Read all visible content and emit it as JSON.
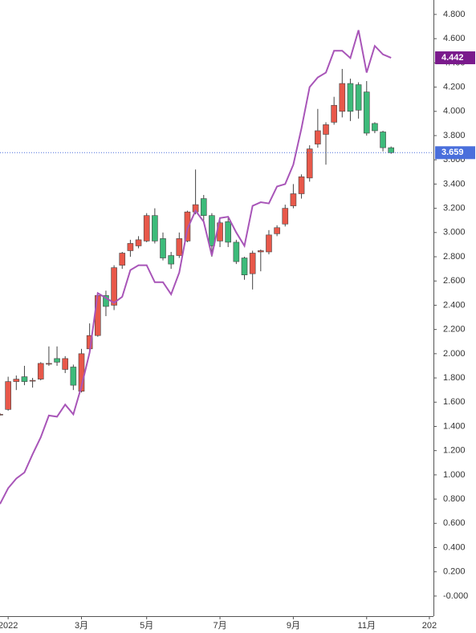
{
  "chart_data": {
    "type": "candlestick",
    "x": [
      0,
      1,
      2,
      3,
      4,
      5,
      6,
      7,
      8,
      9,
      10,
      11,
      12,
      13,
      14,
      15,
      16,
      17,
      18,
      19,
      20,
      21,
      22,
      23,
      24,
      25,
      26,
      27,
      28,
      29,
      30,
      31,
      32,
      33,
      34,
      35,
      36,
      37,
      38,
      39,
      40,
      41,
      42,
      43,
      44,
      45,
      46,
      47,
      48
    ],
    "open": [
      1.5,
      1.54,
      1.77,
      1.81,
      1.78,
      1.79,
      1.92,
      1.96,
      1.87,
      1.89,
      1.69,
      2.04,
      2.15,
      2.48,
      2.4,
      2.73,
      2.85,
      2.89,
      2.93,
      3.14,
      2.95,
      2.81,
      2.81,
      2.93,
      3.17,
      3.28,
      3.14,
      2.93,
      3.09,
      2.92,
      2.79,
      2.66,
      2.84,
      2.84,
      2.99,
      3.07,
      3.22,
      3.32,
      3.45,
      3.73,
      3.81,
      3.91,
      4.0,
      4.23,
      4.22,
      4.16,
      3.9,
      3.83,
      3.7
    ],
    "high": [
      1.51,
      1.81,
      1.82,
      1.9,
      1.8,
      1.93,
      2.06,
      2.06,
      1.98,
      1.91,
      2.04,
      2.25,
      2.5,
      2.52,
      2.73,
      2.84,
      2.94,
      2.97,
      3.16,
      3.2,
      3.0,
      2.84,
      3.0,
      3.18,
      3.52,
      3.31,
      3.16,
      3.1,
      3.12,
      2.94,
      2.8,
      2.85,
      2.86,
      3.02,
      3.06,
      3.23,
      3.4,
      3.48,
      3.72,
      4.02,
      3.91,
      4.12,
      4.35,
      4.27,
      4.24,
      4.25,
      3.91,
      3.84,
      3.71
    ],
    "low": [
      1.49,
      1.53,
      1.7,
      1.74,
      1.72,
      1.78,
      1.9,
      1.9,
      1.84,
      1.7,
      1.68,
      2.02,
      2.14,
      2.31,
      2.36,
      2.7,
      2.8,
      2.87,
      2.92,
      2.91,
      2.77,
      2.7,
      2.79,
      2.92,
      3.15,
      3.1,
      2.8,
      2.88,
      2.88,
      2.74,
      2.61,
      2.53,
      2.68,
      2.82,
      2.97,
      3.05,
      3.2,
      3.28,
      3.42,
      3.7,
      3.56,
      3.89,
      3.95,
      3.92,
      3.94,
      3.8,
      3.82,
      3.67,
      3.65
    ],
    "close": [
      1.5,
      1.77,
      1.79,
      1.77,
      1.78,
      1.92,
      1.92,
      1.93,
      1.96,
      1.74,
      2.0,
      2.15,
      2.48,
      2.39,
      2.71,
      2.83,
      2.91,
      2.94,
      3.14,
      2.93,
      2.79,
      2.74,
      2.95,
      3.17,
      3.23,
      3.14,
      2.89,
      3.08,
      2.92,
      2.76,
      2.65,
      2.83,
      2.85,
      2.98,
      3.04,
      3.2,
      3.32,
      3.46,
      3.69,
      3.84,
      3.89,
      4.05,
      4.23,
      4.0,
      4.01,
      3.82,
      3.84,
      3.7,
      3.659
    ],
    "up_color": "#e8584a",
    "down_color": "#3dbb7a",
    "line": {
      "color": "#a855b8",
      "label_color": "#7a1a8c",
      "values": [
        0.76,
        0.89,
        0.97,
        1.02,
        1.17,
        1.31,
        1.49,
        1.48,
        1.58,
        1.5,
        1.73,
        2.01,
        2.5,
        2.46,
        2.42,
        2.47,
        2.69,
        2.73,
        2.73,
        2.59,
        2.59,
        2.49,
        2.67,
        3.03,
        3.18,
        3.09,
        2.81,
        3.12,
        3.13,
        3.0,
        2.89,
        3.22,
        3.25,
        3.24,
        3.38,
        3.4,
        3.56,
        3.86,
        4.2,
        4.28,
        4.32,
        4.5,
        4.5,
        4.44,
        4.67,
        4.32,
        4.54,
        4.47,
        4.442
      ]
    },
    "last_price_color": "#4a6fdc",
    "xlim": [
      0,
      53.2
    ],
    "xticks": [
      {
        "value": 1,
        "label": "2022"
      },
      {
        "value": 10,
        "label": "3月"
      },
      {
        "value": 18,
        "label": "5月"
      },
      {
        "value": 27,
        "label": "7月"
      },
      {
        "value": 36,
        "label": "9月"
      },
      {
        "value": 45,
        "label": "11月"
      },
      {
        "value": 52.7,
        "label": "202"
      }
    ],
    "ylim": [
      -0.166,
      4.866
    ],
    "yticks": [
      {
        "value": 4.8,
        "label": "4.800"
      },
      {
        "value": 4.6,
        "label": "4.600"
      },
      {
        "value": 4.4,
        "label": "4.400"
      },
      {
        "value": 4.2,
        "label": "4.200"
      },
      {
        "value": 4.0,
        "label": "4.000"
      },
      {
        "value": 3.8,
        "label": "3.800"
      },
      {
        "value": 3.6,
        "label": "3.600"
      },
      {
        "value": 3.4,
        "label": "3.400"
      },
      {
        "value": 3.2,
        "label": "3.200"
      },
      {
        "value": 3.0,
        "label": "3.000"
      },
      {
        "value": 2.8,
        "label": "2.800"
      },
      {
        "value": 2.6,
        "label": "2.600"
      },
      {
        "value": 2.4,
        "label": "2.400"
      },
      {
        "value": 2.2,
        "label": "2.200"
      },
      {
        "value": 2.0,
        "label": "2.000"
      },
      {
        "value": 1.8,
        "label": "1.800"
      },
      {
        "value": 1.6,
        "label": "1.600"
      },
      {
        "value": 1.4,
        "label": "1.400"
      },
      {
        "value": 1.2,
        "label": "1.200"
      },
      {
        "value": 1.0,
        "label": "1.000"
      },
      {
        "value": 0.8,
        "label": "0.800"
      },
      {
        "value": 0.6,
        "label": "0.600"
      },
      {
        "value": 0.4,
        "label": "0.400"
      },
      {
        "value": 0.2,
        "label": "0.200"
      },
      {
        "value": 0,
        "label": "-0.000"
      }
    ]
  }
}
